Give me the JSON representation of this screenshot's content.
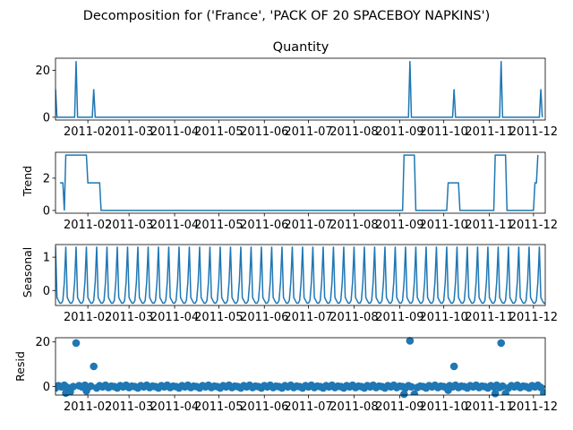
{
  "chart_data": {
    "type": "line",
    "suptitle": "Decomposition for ('France', 'PACK OF 20 SPACEBOY NAPKINS')",
    "x_tick_labels": [
      "2011-02",
      "2011-03",
      "2011-04",
      "2011-05",
      "2011-06",
      "2011-07",
      "2011-08",
      "2011-09",
      "2011-10",
      "2011-11",
      "2011-12"
    ],
    "line_color": "#1f77b4",
    "panels": [
      {
        "id": "observed",
        "type": "line",
        "title": "Quantity",
        "ylabel": "",
        "ylim": [
          -1.2,
          25.2
        ],
        "yticks": [
          0,
          20
        ],
        "points": [
          {
            "x": "2011-01-10",
            "y": 12
          },
          {
            "x": "2011-01-11",
            "y": 0
          },
          {
            "x": "2011-01-23",
            "y": 0
          },
          {
            "x": "2011-01-24",
            "y": 24
          },
          {
            "x": "2011-01-25",
            "y": 0
          },
          {
            "x": "2011-02-04",
            "y": 0
          },
          {
            "x": "2011-02-05",
            "y": 12
          },
          {
            "x": "2011-02-06",
            "y": 0
          },
          {
            "x": "2011-09-07",
            "y": 0
          },
          {
            "x": "2011-09-08",
            "y": 24
          },
          {
            "x": "2011-09-09",
            "y": 0
          },
          {
            "x": "2011-10-07",
            "y": 0
          },
          {
            "x": "2011-10-08",
            "y": 12
          },
          {
            "x": "2011-10-09",
            "y": 0
          },
          {
            "x": "2011-11-08",
            "y": 0
          },
          {
            "x": "2011-11-09",
            "y": 24
          },
          {
            "x": "2011-11-10",
            "y": 0
          },
          {
            "x": "2011-12-05",
            "y": 0
          },
          {
            "x": "2011-12-06",
            "y": 12
          },
          {
            "x": "2011-12-07",
            "y": 0
          }
        ]
      },
      {
        "id": "trend",
        "type": "line",
        "title": "",
        "ylabel": "Trend",
        "ylim": [
          -0.17,
          3.6
        ],
        "yticks": [
          0,
          2
        ],
        "points": [
          {
            "x": "2011-01-13",
            "y": 1.71
          },
          {
            "x": "2011-01-15",
            "y": 1.71
          },
          {
            "x": "2011-01-16",
            "y": 0
          },
          {
            "x": "2011-01-17",
            "y": 3.43
          },
          {
            "x": "2011-01-31",
            "y": 3.43
          },
          {
            "x": "2011-02-01",
            "y": 1.71
          },
          {
            "x": "2011-02-09",
            "y": 1.71
          },
          {
            "x": "2011-02-10",
            "y": 0
          },
          {
            "x": "2011-09-03",
            "y": 0
          },
          {
            "x": "2011-09-04",
            "y": 3.43
          },
          {
            "x": "2011-09-11",
            "y": 3.43
          },
          {
            "x": "2011-09-12",
            "y": 0
          },
          {
            "x": "2011-10-03",
            "y": 0
          },
          {
            "x": "2011-10-04",
            "y": 1.71
          },
          {
            "x": "2011-10-11",
            "y": 1.71
          },
          {
            "x": "2011-10-12",
            "y": 0
          },
          {
            "x": "2011-11-04",
            "y": 0
          },
          {
            "x": "2011-11-05",
            "y": 3.43
          },
          {
            "x": "2011-11-12",
            "y": 3.43
          },
          {
            "x": "2011-11-13",
            "y": 0
          },
          {
            "x": "2011-12-01",
            "y": 0
          },
          {
            "x": "2011-12-02",
            "y": 1.71
          },
          {
            "x": "2011-12-03",
            "y": 1.71
          },
          {
            "x": "2011-12-04",
            "y": 3.43
          }
        ]
      },
      {
        "id": "seasonal",
        "type": "line",
        "title": "",
        "ylabel": "Seasonal",
        "ylim": [
          -0.45,
          1.38
        ],
        "yticks": [
          0,
          1
        ],
        "period_days": 7,
        "first_peak": "2011-01-24",
        "pattern": [
          1.32,
          -0.21,
          -0.3,
          -0.38,
          -0.38,
          -0.3,
          0.25
        ],
        "start": "2011-01-10",
        "end": "2011-12-09"
      },
      {
        "id": "resid",
        "type": "scatter",
        "title": "",
        "ylabel": "Resid",
        "ylim": [
          -3.9,
          21.9
        ],
        "yticks": [
          0,
          20
        ],
        "start": "2011-01-10",
        "end": "2011-12-09",
        "baseline": 0,
        "notable_points": [
          {
            "x": "2011-01-24",
            "y": 19.5
          },
          {
            "x": "2011-02-05",
            "y": 9.0
          },
          {
            "x": "2011-09-08",
            "y": 20.5
          },
          {
            "x": "2011-10-08",
            "y": 9.0
          },
          {
            "x": "2011-11-09",
            "y": 19.5
          },
          {
            "x": "2011-01-17",
            "y": -3.0
          },
          {
            "x": "2011-01-20",
            "y": -2.5
          },
          {
            "x": "2011-01-31",
            "y": -2.0
          },
          {
            "x": "2011-09-04",
            "y": -3.5
          },
          {
            "x": "2011-09-11",
            "y": -3.5
          },
          {
            "x": "2011-10-04",
            "y": -1.7
          },
          {
            "x": "2011-11-05",
            "y": -3.2
          },
          {
            "x": "2011-11-12",
            "y": -3.2
          },
          {
            "x": "2011-12-08",
            "y": -3.0
          }
        ]
      }
    ]
  }
}
